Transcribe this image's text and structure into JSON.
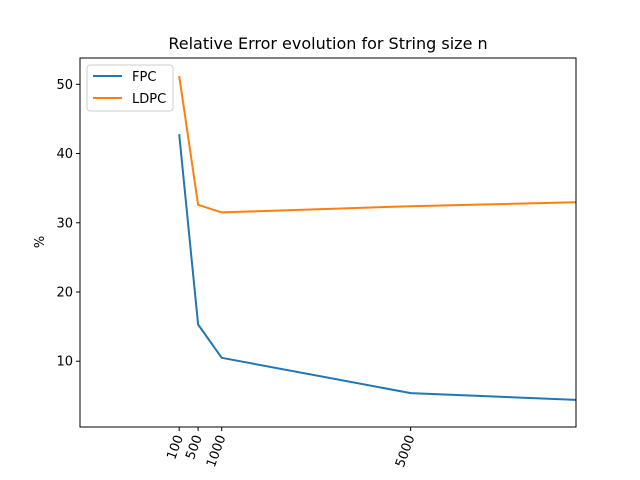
{
  "chart_data": {
    "type": "line",
    "title": "Relative Error evolution for String size n",
    "xlabel": "",
    "ylabel": "%",
    "xlim": [
      -2000,
      8500
    ],
    "ylim": [
      0.5,
      53.8
    ],
    "x_ticks": [
      {
        "value": 100,
        "label": "100"
      },
      {
        "value": 500,
        "label": "500"
      },
      {
        "value": 1000,
        "label": "1000"
      },
      {
        "value": 5000,
        "label": "5000"
      }
    ],
    "y_ticks": [
      {
        "value": 10,
        "label": "10"
      },
      {
        "value": 20,
        "label": "20"
      },
      {
        "value": 30,
        "label": "30"
      },
      {
        "value": 40,
        "label": "40"
      },
      {
        "value": 50,
        "label": "50"
      }
    ],
    "x_tick_rotation": "vertical-ish (~70°)",
    "grid": false,
    "legend_position": "top-left",
    "series": [
      {
        "name": "FPC",
        "color": "#1f77b4",
        "x": [
          100,
          500,
          1000,
          5000,
          10000
        ],
        "y": [
          42.8,
          15.3,
          10.5,
          5.4,
          4.0
        ]
      },
      {
        "name": "LDPC",
        "color": "#ff7f0e",
        "x": [
          100,
          500,
          1000,
          5000,
          10000
        ],
        "y": [
          51.2,
          32.6,
          31.5,
          32.4,
          33.2
        ]
      }
    ]
  }
}
